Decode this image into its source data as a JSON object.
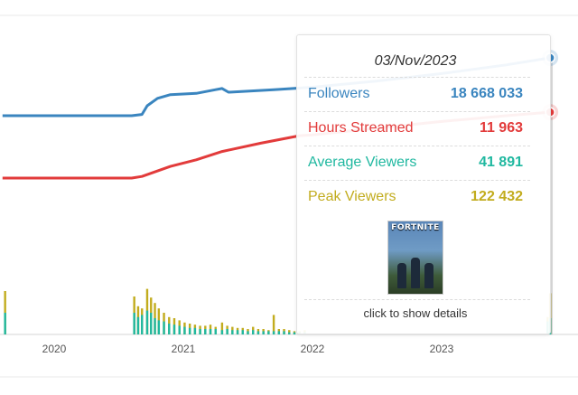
{
  "chart_data": {
    "type": "line",
    "x_ticks": [
      "2020",
      "2021",
      "2022",
      "2023"
    ],
    "series": [
      {
        "name": "Followers",
        "color": "#3a85bf",
        "points": [
          [
            2019.6,
            14.0
          ],
          [
            2020.6,
            14.0
          ],
          [
            2020.68,
            14.1
          ],
          [
            2020.72,
            14.8
          ],
          [
            2020.8,
            15.4
          ],
          [
            2020.9,
            15.7
          ],
          [
            2021.1,
            15.8
          ],
          [
            2021.25,
            16.1
          ],
          [
            2021.3,
            16.2
          ],
          [
            2021.35,
            15.9
          ],
          [
            2021.45,
            15.95
          ],
          [
            2021.7,
            16.1
          ],
          [
            2022.0,
            16.3
          ],
          [
            2022.5,
            16.8
          ],
          [
            2023.0,
            17.4
          ],
          [
            2023.5,
            18.1
          ],
          [
            2023.84,
            18.668
          ]
        ]
      },
      {
        "name": "Hours Streamed",
        "color": "#e23b3b",
        "points": [
          [
            2019.6,
            8.0
          ],
          [
            2020.6,
            8.0
          ],
          [
            2020.68,
            8.1
          ],
          [
            2020.9,
            8.7
          ],
          [
            2021.1,
            9.1
          ],
          [
            2021.3,
            9.6
          ],
          [
            2021.6,
            10.1
          ],
          [
            2021.9,
            10.55
          ],
          [
            2022.0,
            10.6
          ],
          [
            2022.5,
            11.0
          ],
          [
            2023.0,
            11.4
          ],
          [
            2023.5,
            11.75
          ],
          [
            2023.84,
            11.963
          ]
        ]
      }
    ],
    "bars": [
      {
        "x": 2019.62,
        "avg": 2.0,
        "peak": 4.0
      },
      {
        "x": 2020.62,
        "avg": 2.0,
        "peak": 3.5
      },
      {
        "x": 2020.65,
        "avg": 1.6,
        "peak": 2.6
      },
      {
        "x": 2020.68,
        "avg": 1.8,
        "peak": 2.4
      },
      {
        "x": 2020.72,
        "avg": 2.2,
        "peak": 4.2
      },
      {
        "x": 2020.75,
        "avg": 2.0,
        "peak": 3.4
      },
      {
        "x": 2020.78,
        "avg": 1.5,
        "peak": 2.9
      },
      {
        "x": 2020.81,
        "avg": 1.3,
        "peak": 2.4
      },
      {
        "x": 2020.85,
        "avg": 1.2,
        "peak": 2.0
      },
      {
        "x": 2020.89,
        "avg": 1.0,
        "peak": 1.6
      },
      {
        "x": 2020.93,
        "avg": 0.9,
        "peak": 1.5
      },
      {
        "x": 2020.97,
        "avg": 0.8,
        "peak": 1.3
      },
      {
        "x": 2021.01,
        "avg": 0.7,
        "peak": 1.1
      },
      {
        "x": 2021.05,
        "avg": 0.6,
        "peak": 1.0
      },
      {
        "x": 2021.09,
        "avg": 0.6,
        "peak": 0.9
      },
      {
        "x": 2021.13,
        "avg": 0.5,
        "peak": 0.8
      },
      {
        "x": 2021.17,
        "avg": 0.5,
        "peak": 0.8
      },
      {
        "x": 2021.21,
        "avg": 0.5,
        "peak": 0.9
      },
      {
        "x": 2021.25,
        "avg": 0.5,
        "peak": 0.7
      },
      {
        "x": 2021.3,
        "avg": 0.4,
        "peak": 1.1
      },
      {
        "x": 2021.34,
        "avg": 0.5,
        "peak": 0.8
      },
      {
        "x": 2021.38,
        "avg": 0.4,
        "peak": 0.7
      },
      {
        "x": 2021.42,
        "avg": 0.4,
        "peak": 0.6
      },
      {
        "x": 2021.46,
        "avg": 0.4,
        "peak": 0.6
      },
      {
        "x": 2021.5,
        "avg": 0.3,
        "peak": 0.5
      },
      {
        "x": 2021.54,
        "avg": 0.4,
        "peak": 0.7
      },
      {
        "x": 2021.58,
        "avg": 0.3,
        "peak": 0.5
      },
      {
        "x": 2021.62,
        "avg": 0.3,
        "peak": 0.5
      },
      {
        "x": 2021.66,
        "avg": 0.3,
        "peak": 0.4
      },
      {
        "x": 2021.7,
        "avg": 0.3,
        "peak": 1.8
      },
      {
        "x": 2021.74,
        "avg": 0.3,
        "peak": 0.5
      },
      {
        "x": 2021.78,
        "avg": 0.3,
        "peak": 0.5
      },
      {
        "x": 2021.82,
        "avg": 0.2,
        "peak": 0.4
      },
      {
        "x": 2021.86,
        "avg": 0.2,
        "peak": 0.3
      },
      {
        "x": 2021.9,
        "avg": 0.2,
        "peak": 0.3
      },
      {
        "x": 2021.94,
        "avg": 0.2,
        "peak": 0.4
      },
      {
        "x": 2023.82,
        "avg": 1.2,
        "peak": 1.6
      },
      {
        "x": 2023.84,
        "avg": 1.5,
        "peak": 3.8
      }
    ],
    "tooltip": {
      "date": "03/Nov/2023",
      "rows": [
        {
          "label": "Followers",
          "value": "18 668 033",
          "color": "#3a85bf"
        },
        {
          "label": "Hours Streamed",
          "value": "11 963",
          "color": "#e23b3b"
        },
        {
          "label": "Average Viewers",
          "value": "41 891",
          "color": "#20b8a0"
        },
        {
          "label": "Peak Viewers",
          "value": "122 432",
          "color": "#c2ac1e"
        }
      ],
      "game_logo": "FORTNITE",
      "footer": "click to show details"
    },
    "colors": {
      "avg": "#20b8a0",
      "peak": "#c2ac1e"
    }
  }
}
